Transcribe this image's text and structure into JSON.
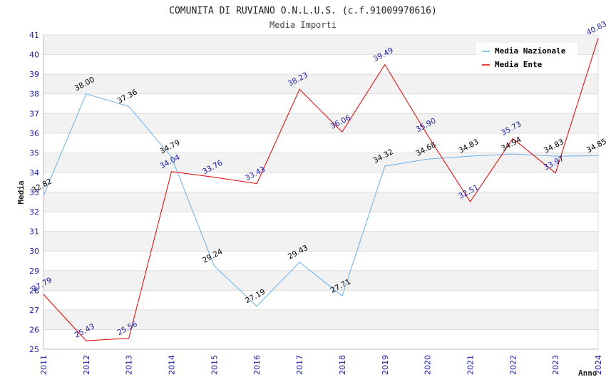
{
  "chart_data": {
    "type": "line",
    "title": "COMUNITA DI RUVIANO O.N.L.U.S. (c.f.91009970616)",
    "subtitle": "Media Importi",
    "xlabel": "Anno",
    "ylabel": "Media",
    "ylim": [
      25,
      41
    ],
    "yticks": [
      "25",
      "26",
      "27",
      "28",
      "29",
      "30",
      "31",
      "32",
      "33",
      "34",
      "35",
      "36",
      "37",
      "38",
      "39",
      "40",
      "41"
    ],
    "categories": [
      "2011",
      "2012",
      "2013",
      "2014",
      "2015",
      "2016",
      "2017",
      "2018",
      "2019",
      "2020",
      "2021",
      "2022",
      "2023",
      "2024"
    ],
    "legend_position": "top-right",
    "series": [
      {
        "name": "Media Nazionale",
        "color": "#6aaee8",
        "label_color": "#000000",
        "values": [
          32.82,
          38.0,
          37.36,
          34.79,
          29.24,
          27.19,
          29.43,
          27.71,
          34.32,
          34.68,
          34.83,
          34.94,
          34.83,
          34.85
        ],
        "labels": [
          "32.82",
          "38.00",
          "37.36",
          "34.79",
          "29.24",
          "27.19",
          "29.43",
          "27.71",
          "34.32",
          "34.68",
          "34.83",
          "34.94",
          "34.83",
          "34.85"
        ]
      },
      {
        "name": "Media Ente",
        "color": "#e00000",
        "label_color": "#1a1aa6",
        "values": [
          27.79,
          25.43,
          25.56,
          34.04,
          33.76,
          33.43,
          38.23,
          36.06,
          39.49,
          35.9,
          32.51,
          35.73,
          33.97,
          40.83
        ],
        "labels": [
          "27.79",
          "25.43",
          "25.56",
          "34.04",
          "33.76",
          "33.43",
          "38.23",
          "36.06",
          "39.49",
          "35.90",
          "32.51",
          "35.73",
          "33.97",
          "40.83"
        ]
      }
    ]
  }
}
